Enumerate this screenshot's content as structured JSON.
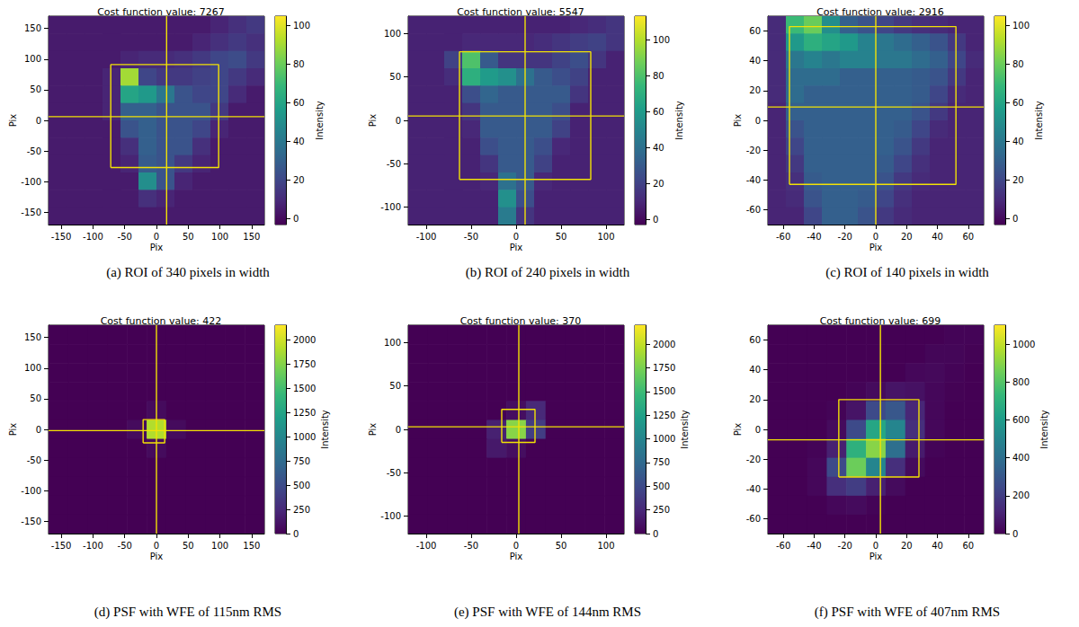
{
  "chart_data": [
    {
      "type": "heatmap",
      "title": "Cost function value: 7267",
      "caption": "(a) ROI of 340 pixels in width",
      "x_label": "Pix",
      "y_label": "Pix",
      "xlim": [
        -170,
        170
      ],
      "ylim": [
        -170,
        170
      ],
      "xticks": [
        -150,
        -100,
        -50,
        0,
        50,
        100,
        150
      ],
      "yticks": [
        -150,
        -100,
        -50,
        0,
        50,
        100,
        150
      ],
      "cells": [
        [
          5,
          5,
          5,
          5,
          5,
          5,
          5,
          5,
          5,
          8,
          12,
          15
        ],
        [
          5,
          5,
          5,
          5,
          5,
          5,
          5,
          5,
          8,
          12,
          15,
          12
        ],
        [
          5,
          5,
          5,
          5,
          8,
          10,
          10,
          12,
          15,
          20,
          22,
          15
        ],
        [
          5,
          5,
          5,
          8,
          90,
          20,
          15,
          15,
          18,
          20,
          15,
          10
        ],
        [
          5,
          5,
          5,
          8,
          60,
          55,
          40,
          25,
          20,
          20,
          10,
          5
        ],
        [
          5,
          5,
          5,
          8,
          30,
          30,
          25,
          25,
          25,
          15,
          5,
          5
        ],
        [
          5,
          5,
          5,
          5,
          25,
          30,
          25,
          25,
          20,
          8,
          5,
          5
        ],
        [
          5,
          5,
          5,
          5,
          12,
          30,
          25,
          25,
          12,
          5,
          5,
          5
        ],
        [
          5,
          5,
          5,
          5,
          8,
          28,
          25,
          15,
          8,
          5,
          5,
          5
        ],
        [
          5,
          5,
          5,
          5,
          5,
          50,
          25,
          8,
          5,
          5,
          5,
          5
        ],
        [
          5,
          5,
          5,
          5,
          5,
          12,
          8,
          5,
          5,
          5,
          5,
          5
        ],
        [
          5,
          5,
          5,
          5,
          5,
          5,
          5,
          5,
          5,
          5,
          5,
          5
        ]
      ],
      "colorbar": {
        "label": "Intensity",
        "range": [
          -3,
          105
        ],
        "ticks": [
          0,
          20,
          40,
          60,
          80,
          100
        ]
      },
      "roi_box": {
        "x": [
          -72,
          98
        ],
        "y": [
          -77,
          91
        ]
      },
      "crosshair": {
        "x": 16,
        "y": 6
      },
      "color": "#f2e205"
    },
    {
      "type": "heatmap",
      "title": "Cost function value: 5547",
      "caption": "(b) ROI of 240 pixels in width",
      "x_label": "Pix",
      "y_label": "Pix",
      "xlim": [
        -120,
        120
      ],
      "ylim": [
        -120,
        120
      ],
      "xticks": [
        -100,
        -50,
        0,
        50,
        100
      ],
      "yticks": [
        -100,
        -50,
        0,
        50,
        100
      ],
      "cells": [
        [
          8,
          8,
          8,
          8,
          8,
          8,
          8,
          8,
          8,
          10,
          12,
          15
        ],
        [
          8,
          8,
          8,
          10,
          10,
          10,
          10,
          12,
          15,
          18,
          20,
          15
        ],
        [
          8,
          8,
          20,
          80,
          30,
          15,
          15,
          15,
          20,
          25,
          15,
          8
        ],
        [
          8,
          8,
          12,
          70,
          60,
          55,
          40,
          30,
          25,
          20,
          8,
          8
        ],
        [
          8,
          8,
          8,
          25,
          35,
          30,
          30,
          30,
          30,
          15,
          8,
          8
        ],
        [
          8,
          8,
          8,
          15,
          30,
          30,
          30,
          30,
          25,
          8,
          8,
          8
        ],
        [
          8,
          8,
          8,
          10,
          30,
          30,
          30,
          30,
          20,
          8,
          8,
          8
        ],
        [
          8,
          8,
          8,
          8,
          25,
          30,
          30,
          25,
          10,
          8,
          8,
          8
        ],
        [
          8,
          8,
          8,
          8,
          15,
          30,
          30,
          20,
          8,
          8,
          8,
          8
        ],
        [
          8,
          8,
          8,
          8,
          10,
          40,
          30,
          10,
          8,
          8,
          8,
          8
        ],
        [
          8,
          8,
          8,
          8,
          8,
          55,
          25,
          8,
          8,
          8,
          8,
          8
        ],
        [
          8,
          8,
          8,
          8,
          8,
          45,
          15,
          8,
          8,
          8,
          8,
          8
        ]
      ],
      "colorbar": {
        "label": "Intensity",
        "range": [
          -3,
          113
        ],
        "ticks": [
          0,
          20,
          40,
          60,
          80,
          100
        ]
      },
      "roi_box": {
        "x": [
          -63,
          83
        ],
        "y": [
          -68,
          79
        ]
      },
      "crosshair": {
        "x": 10,
        "y": 5
      },
      "color": "#f2e205"
    },
    {
      "type": "heatmap",
      "title": "Cost function value: 2916",
      "caption": "(c) ROI of 140 pixels in width",
      "x_label": "Pix",
      "y_label": "Pix",
      "xlim": [
        -70,
        70
      ],
      "ylim": [
        -70,
        70
      ],
      "xticks": [
        -60,
        -40,
        -20,
        0,
        20,
        40,
        60
      ],
      "yticks": [
        -60,
        -40,
        -20,
        0,
        20,
        40,
        60
      ],
      "cells": [
        [
          10,
          70,
          80,
          50,
          30,
          25,
          20,
          15,
          12,
          10,
          8,
          8
        ],
        [
          10,
          55,
          65,
          60,
          55,
          45,
          40,
          35,
          30,
          25,
          15,
          8
        ],
        [
          10,
          40,
          45,
          40,
          45,
          45,
          40,
          40,
          35,
          30,
          20,
          10
        ],
        [
          10,
          35,
          35,
          35,
          30,
          30,
          30,
          30,
          28,
          25,
          15,
          8
        ],
        [
          10,
          35,
          30,
          30,
          30,
          30,
          30,
          30,
          28,
          20,
          10,
          8
        ],
        [
          8,
          30,
          30,
          30,
          30,
          30,
          30,
          30,
          25,
          15,
          8,
          8
        ],
        [
          8,
          25,
          30,
          30,
          30,
          30,
          30,
          28,
          20,
          10,
          8,
          8
        ],
        [
          8,
          20,
          30,
          30,
          30,
          30,
          30,
          25,
          15,
          8,
          8,
          8
        ],
        [
          8,
          15,
          30,
          30,
          30,
          30,
          28,
          20,
          12,
          8,
          8,
          8
        ],
        [
          8,
          12,
          28,
          30,
          30,
          30,
          25,
          15,
          10,
          8,
          8,
          8
        ],
        [
          8,
          10,
          25,
          30,
          30,
          28,
          20,
          12,
          8,
          8,
          8,
          8
        ],
        [
          8,
          8,
          20,
          30,
          30,
          25,
          15,
          10,
          8,
          8,
          8,
          8
        ]
      ],
      "colorbar": {
        "label": "Intensity",
        "range": [
          -3,
          105
        ],
        "ticks": [
          0,
          20,
          40,
          60,
          80,
          100
        ]
      },
      "roi_box": {
        "x": [
          -56,
          52
        ],
        "y": [
          -43,
          63
        ]
      },
      "crosshair": {
        "x": 0,
        "y": 9
      },
      "color": "#f2e205"
    },
    {
      "type": "heatmap",
      "title": "Cost function value: 422",
      "caption": "(d) PSF with WFE of 115nm RMS",
      "x_label": "Pix",
      "y_label": "Pix",
      "xlim": [
        -170,
        170
      ],
      "ylim": [
        -170,
        170
      ],
      "xticks": [
        -150,
        -100,
        -50,
        0,
        50,
        100,
        150
      ],
      "yticks": [
        -150,
        -100,
        -50,
        0,
        50,
        100,
        150
      ],
      "cells": [
        [
          0,
          0,
          0,
          0,
          0,
          0,
          0,
          0,
          0,
          0,
          0
        ],
        [
          0,
          0,
          0,
          0,
          0,
          0,
          0,
          0,
          0,
          0,
          0
        ],
        [
          0,
          0,
          0,
          0,
          0,
          0,
          0,
          0,
          0,
          0,
          0
        ],
        [
          0,
          0,
          0,
          0,
          0,
          0,
          0,
          0,
          0,
          0,
          0
        ],
        [
          0,
          0,
          0,
          0,
          0,
          60,
          0,
          0,
          0,
          0,
          0
        ],
        [
          0,
          0,
          0,
          0,
          60,
          1900,
          60,
          0,
          0,
          0,
          0
        ],
        [
          0,
          0,
          0,
          0,
          0,
          60,
          0,
          0,
          0,
          0,
          0
        ],
        [
          0,
          0,
          0,
          0,
          0,
          0,
          0,
          0,
          0,
          0,
          0
        ],
        [
          0,
          0,
          0,
          0,
          0,
          0,
          0,
          0,
          0,
          0,
          0
        ],
        [
          0,
          0,
          0,
          0,
          0,
          0,
          0,
          0,
          0,
          0,
          0
        ],
        [
          0,
          0,
          0,
          0,
          0,
          0,
          0,
          0,
          0,
          0,
          0
        ]
      ],
      "colorbar": {
        "label": "Intensity",
        "range": [
          0,
          2150
        ],
        "ticks": [
          0,
          250,
          500,
          750,
          1000,
          1250,
          1500,
          1750,
          2000
        ]
      },
      "roi_box": {
        "x": [
          -21,
          13
        ],
        "y": [
          -22,
          16
        ]
      },
      "crosshair": {
        "x": 0,
        "y": -2
      },
      "color": "#f2e205"
    },
    {
      "type": "heatmap",
      "title": "Cost function value: 370",
      "caption": "(e) PSF with WFE of 144nm RMS",
      "x_label": "Pix",
      "y_label": "Pix",
      "xlim": [
        -120,
        120
      ],
      "ylim": [
        -120,
        120
      ],
      "xticks": [
        -100,
        -50,
        0,
        50,
        100
      ],
      "yticks": [
        -100,
        -50,
        0,
        50,
        100
      ],
      "cells": [
        [
          0,
          0,
          0,
          0,
          0,
          0,
          0,
          0,
          0,
          0,
          0
        ],
        [
          0,
          0,
          0,
          0,
          0,
          0,
          0,
          0,
          0,
          0,
          0
        ],
        [
          0,
          0,
          0,
          0,
          0,
          0,
          0,
          0,
          0,
          0,
          0
        ],
        [
          0,
          0,
          0,
          0,
          0,
          0,
          0,
          0,
          0,
          0,
          0
        ],
        [
          0,
          0,
          0,
          0,
          0,
          80,
          250,
          0,
          0,
          0,
          0
        ],
        [
          0,
          0,
          0,
          0,
          200,
          1800,
          400,
          0,
          0,
          0,
          0
        ],
        [
          0,
          0,
          0,
          0,
          150,
          80,
          0,
          0,
          0,
          0,
          0
        ],
        [
          0,
          0,
          0,
          0,
          0,
          0,
          0,
          0,
          0,
          0,
          0
        ],
        [
          0,
          0,
          0,
          0,
          0,
          0,
          0,
          0,
          0,
          0,
          0
        ],
        [
          0,
          0,
          0,
          0,
          0,
          0,
          0,
          0,
          0,
          0,
          0
        ],
        [
          0,
          0,
          0,
          0,
          0,
          0,
          0,
          0,
          0,
          0,
          0
        ]
      ],
      "colorbar": {
        "label": "Intensity",
        "range": [
          0,
          2200
        ],
        "ticks": [
          0,
          250,
          500,
          750,
          1000,
          1250,
          1500,
          1750,
          2000
        ]
      },
      "roi_box": {
        "x": [
          -16,
          21
        ],
        "y": [
          -15,
          23
        ]
      },
      "crosshair": {
        "x": 3,
        "y": 3
      },
      "color": "#f2e205"
    },
    {
      "type": "heatmap",
      "title": "Cost function value: 699",
      "caption": "(f) PSF with WFE of 407nm RMS",
      "x_label": "Pix",
      "y_label": "Pix",
      "xlim": [
        -70,
        70
      ],
      "ylim": [
        -70,
        70
      ],
      "xticks": [
        -60,
        -40,
        -20,
        0,
        20,
        40,
        60
      ],
      "yticks": [
        -60,
        -40,
        -20,
        0,
        20,
        40,
        60
      ],
      "cells": [
        [
          0,
          0,
          0,
          0,
          0,
          0,
          0,
          0,
          0,
          10,
          10
        ],
        [
          0,
          0,
          0,
          0,
          0,
          0,
          0,
          0,
          15,
          15,
          5
        ],
        [
          0,
          0,
          0,
          0,
          0,
          0,
          0,
          20,
          25,
          10,
          0
        ],
        [
          0,
          0,
          0,
          0,
          10,
          30,
          60,
          50,
          20,
          5,
          0
        ],
        [
          0,
          0,
          0,
          10,
          60,
          250,
          300,
          120,
          20,
          0,
          0
        ],
        [
          0,
          0,
          0,
          30,
          250,
          650,
          500,
          150,
          20,
          0,
          0
        ],
        [
          0,
          0,
          10,
          100,
          700,
          900,
          400,
          80,
          10,
          0,
          0
        ],
        [
          0,
          0,
          20,
          250,
          850,
          500,
          150,
          30,
          0,
          0,
          0
        ],
        [
          0,
          0,
          20,
          150,
          200,
          100,
          30,
          0,
          0,
          0,
          0
        ],
        [
          0,
          0,
          0,
          20,
          30,
          10,
          0,
          0,
          0,
          0,
          0
        ],
        [
          0,
          0,
          0,
          0,
          0,
          0,
          0,
          0,
          0,
          0,
          0
        ]
      ],
      "colorbar": {
        "label": "Intensity",
        "range": [
          0,
          1100
        ],
        "ticks": [
          0,
          200,
          400,
          600,
          800,
          1000
        ]
      },
      "roi_box": {
        "x": [
          -24,
          28
        ],
        "y": [
          -32,
          20
        ]
      },
      "crosshair": {
        "x": 3,
        "y": -7
      },
      "color": "#f2e205"
    }
  ]
}
